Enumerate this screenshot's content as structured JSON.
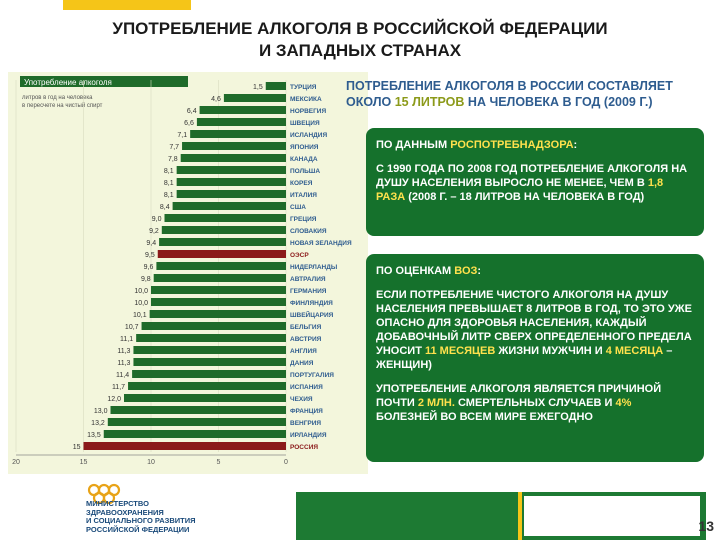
{
  "slide": {
    "title_line1": "УПОТРЕБЛЕНИЕ АЛКОГОЛЯ В РОССИЙСКОЙ ФЕДЕРАЦИИ",
    "title_line2": "И ЗАПАДНЫХ СТРАНАХ",
    "page_number": "13"
  },
  "colors": {
    "accent": "#f5c518",
    "bar_green": "#1f6b2a",
    "highlight_red": "#8b1a1a",
    "box_green": "#15712c",
    "header_blue": "#2e5c8f"
  },
  "chart_data": {
    "type": "bar",
    "orientation": "horizontal",
    "title": "Употребление алкоголя",
    "subtitle": "литров в год на человека в пересчете на чистый спирт",
    "xlim": [
      0,
      20
    ],
    "x_ticks": [
      "20",
      "15",
      "10",
      "5",
      "0"
    ],
    "categories": [
      "ТУРЦИЯ",
      "МЕКСИКА",
      "НОРВЕГИЯ",
      "ШВЕЦИЯ",
      "ИСЛАНДИЯ",
      "ЯПОНИЯ",
      "КАНАДА",
      "ПОЛЬША",
      "КОРЕЯ",
      "ИТАЛИЯ",
      "США",
      "ГРЕЦИЯ",
      "СЛОВАКИЯ",
      "НОВАЯ ЗЕЛАНДИЯ",
      "ОЭСР",
      "НИДЕРЛАНДЫ",
      "АВТРАЛИЯ",
      "ГЕРМАНИЯ",
      "ФИНЛЯНДИЯ",
      "ШВЕЙЦАРИЯ",
      "БЕЛЬГИЯ",
      "АВСТРИЯ",
      "АНГЛИЯ",
      "ДАНИЯ",
      "ПОРТУГАЛИЯ",
      "ИСПАНИЯ",
      "ЧЕХИЯ",
      "ФРАНЦИЯ",
      "ВЕНГРИЯ",
      "ИРЛАНДИЯ",
      "РОССИЯ"
    ],
    "values": [
      1.5,
      4.6,
      6.4,
      6.6,
      7.1,
      7.7,
      7.8,
      8.1,
      8.1,
      8.1,
      8.4,
      9.0,
      9.2,
      9.4,
      9.5,
      9.6,
      9.8,
      10.0,
      10.0,
      10.1,
      10.7,
      11.1,
      11.3,
      11.3,
      11.4,
      11.7,
      12.0,
      13.0,
      13.2,
      13.5,
      15
    ],
    "value_labels": [
      "1,5",
      "4,6",
      "6,4",
      "6,6",
      "7,1",
      "7,7",
      "7,8",
      "8,1",
      "8,1",
      "8,1",
      "8,4",
      "9,0",
      "9,2",
      "9,4",
      "9,5",
      "9,6",
      "9,8",
      "10,0",
      "10,0",
      "10,1",
      "10,7",
      "11,1",
      "11,3",
      "11,3",
      "11,4",
      "11,7",
      "12,0",
      "13,0",
      "13,2",
      "13,5",
      "15"
    ],
    "highlighted": [
      "ОЭСР",
      "РОССИЯ"
    ]
  },
  "panel": {
    "header_part1": "ПОТРЕБЛЕНИЕ АЛКОГОЛЯ В РОССИИ СОСТАВЛЯЕТ ОКОЛО ",
    "header_hl": "15 ЛИТРОВ",
    "header_part2": " НА ЧЕЛОВЕКА В ГОД (2009 Г.)",
    "box1": {
      "heading_prefix": "ПО ДАННЫМ ",
      "heading_hl": "РОСПОТРЕБНАДЗОРА",
      "heading_suffix": ":",
      "text_part1": "С 1990 ГОДА ПО 2008 ГОД ПОТРЕБЛЕНИЕ АЛКОГОЛЯ НА ДУШУ НАСЕЛЕНИЯ ВЫРОСЛО НЕ МЕНЕЕ, ЧЕМ В ",
      "text_hl": "1,8 РАЗА",
      "text_part2": " (2008 Г. – 18 ЛИТРОВ НА ЧЕЛОВЕКА В ГОД)"
    },
    "box2": {
      "heading_prefix": "ПО ОЦЕНКАМ ",
      "heading_hl": "ВОЗ",
      "heading_suffix": ":",
      "text_part1": "ЕСЛИ ПОТРЕБЛЕНИЕ ЧИСТОГО АЛКОГОЛЯ НА ДУШУ НАСЕЛЕНИЯ ПРЕВЫШАЕТ 8 ЛИТРОВ В ГОД, ТО ЭТО УЖЕ ОПАСНО ДЛЯ ЗДОРОВЬЯ НАСЕЛЕНИЯ, КАЖДЫЙ ДОБАВОЧНЫЙ ЛИТР СВЕРХ ОПРЕДЕЛЕННОГО ПРЕДЕЛА УНОСИТ ",
      "text_hl1": "11 МЕСЯЦЕВ",
      "text_part2": " ЖИЗНИ МУЖЧИН И ",
      "text_hl2": "4 МЕСЯЦА",
      "text_part3": " – ЖЕНЩИН)",
      "text2_part1": "УПОТРЕБЛЕНИЕ АЛКОГОЛЯ ЯВЛЯЕТСЯ ПРИЧИНОЙ ПОЧТИ ",
      "text2_hl1": "2 МЛН.",
      "text2_part2": " СМЕРТЕЛЬНЫХ СЛУЧАЕВ И ",
      "text2_hl2": "4%",
      "text2_part3": " БОЛЕЗНЕЙ ВО ВСЕМ МИРЕ ЕЖЕГОДНО"
    }
  },
  "logo": {
    "line1": "МИНИСТЕРСТВО",
    "line2": "ЗДРАВООХРАНЕНИЯ",
    "line3": "И СОЦИАЛЬНОГО РАЗВИТИЯ",
    "line4": "РОССИЙСКОЙ ФЕДЕРАЦИИ"
  }
}
